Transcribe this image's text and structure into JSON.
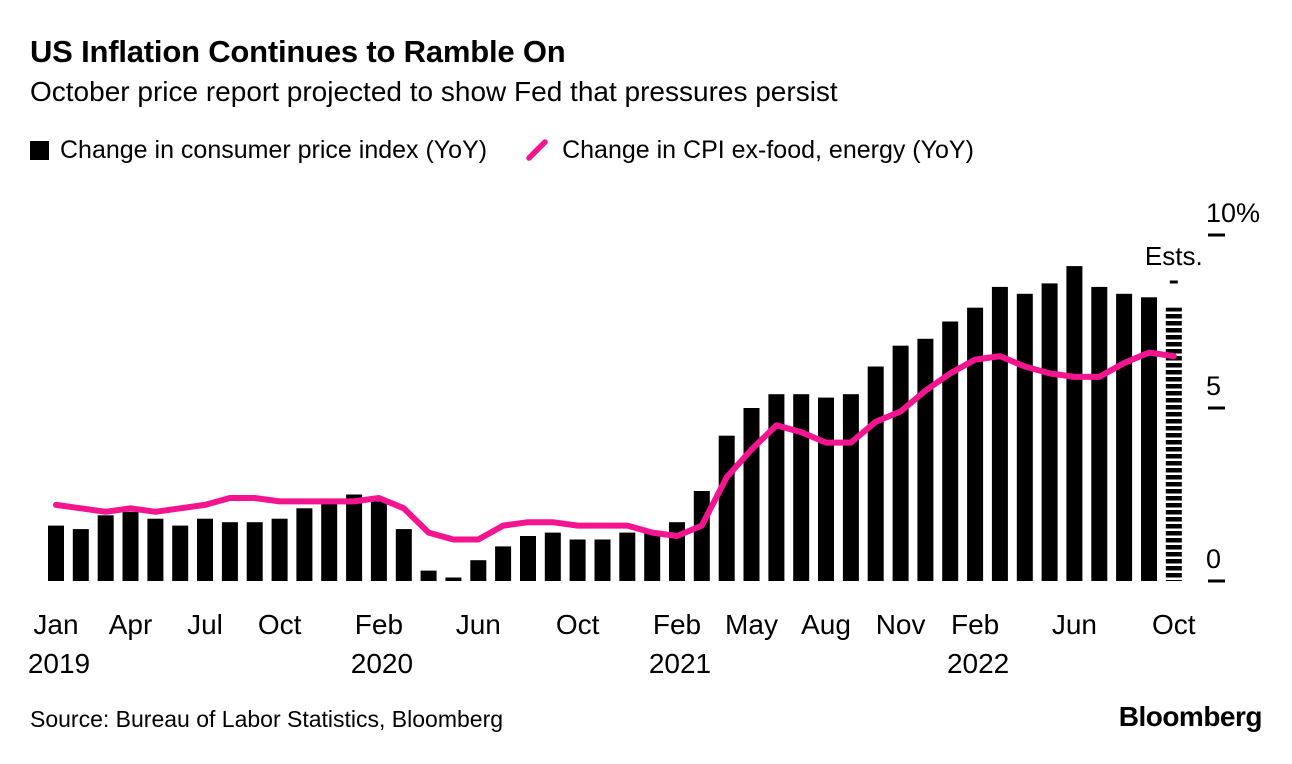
{
  "header": {
    "title": "US Inflation Continues to Ramble On",
    "subtitle": "October price report projected to show Fed that pressures persist"
  },
  "legend": [
    {
      "marker": "black-square",
      "label": "Change in consumer price index (YoY)"
    },
    {
      "marker": "pink-line",
      "label": "Change in CPI ex-food, energy (YoY)"
    }
  ],
  "colors": {
    "bar": "#000000",
    "line": "#f5148f",
    "text": "#000000",
    "background": "#ffffff"
  },
  "source": "Source: Bureau of Labor Statistics, Bloomberg",
  "logo": "Bloomberg",
  "chart_data": {
    "type": "bar",
    "title": "US Inflation Continues to Ramble On",
    "subtitle": "October price report projected to show Fed that pressures persist",
    "xlabel": "",
    "ylabel": "",
    "ylim": [
      0,
      10
    ],
    "grid": false,
    "legend_position": "top",
    "estimate_label": "Ests.",
    "y_ticks": [
      {
        "value": 10,
        "label": "10%"
      },
      {
        "value": 5,
        "label": "5"
      },
      {
        "value": 0,
        "label": "0"
      }
    ],
    "x_ticks": [
      {
        "index": 0,
        "label": "Jan",
        "year": "2019"
      },
      {
        "index": 3,
        "label": "Apr"
      },
      {
        "index": 6,
        "label": "Jul"
      },
      {
        "index": 9,
        "label": "Oct"
      },
      {
        "index": 13,
        "label": "Feb",
        "year": "2020"
      },
      {
        "index": 17,
        "label": "Jun"
      },
      {
        "index": 21,
        "label": "Oct"
      },
      {
        "index": 25,
        "label": "Feb",
        "year": "2021"
      },
      {
        "index": 28,
        "label": "May"
      },
      {
        "index": 31,
        "label": "Aug"
      },
      {
        "index": 34,
        "label": "Nov"
      },
      {
        "index": 37,
        "label": "Feb",
        "year": "2022"
      },
      {
        "index": 41,
        "label": "Jun"
      },
      {
        "index": 45,
        "label": "Oct"
      }
    ],
    "x": [
      "Jan 2019",
      "Feb 2019",
      "Mar 2019",
      "Apr 2019",
      "May 2019",
      "Jun 2019",
      "Jul 2019",
      "Aug 2019",
      "Sep 2019",
      "Oct 2019",
      "Nov 2019",
      "Dec 2019",
      "Jan 2020",
      "Feb 2020",
      "Mar 2020",
      "Apr 2020",
      "May 2020",
      "Jun 2020",
      "Jul 2020",
      "Aug 2020",
      "Sep 2020",
      "Oct 2020",
      "Nov 2020",
      "Dec 2020",
      "Jan 2021",
      "Feb 2021",
      "Mar 2021",
      "Apr 2021",
      "May 2021",
      "Jun 2021",
      "Jul 2021",
      "Aug 2021",
      "Sep 2021",
      "Oct 2021",
      "Nov 2021",
      "Dec 2021",
      "Jan 2022",
      "Feb 2022",
      "Mar 2022",
      "Apr 2022",
      "May 2022",
      "Jun 2022",
      "Jul 2022",
      "Aug 2022",
      "Sep 2022",
      "Oct 2022"
    ],
    "series": [
      {
        "name": "Change in consumer price index (YoY)",
        "type": "bar",
        "estimate_last": true,
        "values": [
          1.6,
          1.5,
          1.9,
          2.0,
          1.8,
          1.6,
          1.8,
          1.7,
          1.7,
          1.8,
          2.1,
          2.3,
          2.5,
          2.3,
          1.5,
          0.3,
          0.1,
          0.6,
          1.0,
          1.3,
          1.4,
          1.2,
          1.2,
          1.4,
          1.4,
          1.7,
          2.6,
          4.2,
          5.0,
          5.4,
          5.4,
          5.3,
          5.4,
          6.2,
          6.8,
          7.0,
          7.5,
          7.9,
          8.5,
          8.3,
          8.6,
          9.1,
          8.5,
          8.3,
          8.2,
          7.9
        ]
      },
      {
        "name": "Change in CPI ex-food, energy (YoY)",
        "type": "line",
        "values": [
          2.2,
          2.1,
          2.0,
          2.1,
          2.0,
          2.1,
          2.2,
          2.4,
          2.4,
          2.3,
          2.3,
          2.3,
          2.3,
          2.4,
          2.1,
          1.4,
          1.2,
          1.2,
          1.6,
          1.7,
          1.7,
          1.6,
          1.6,
          1.6,
          1.4,
          1.3,
          1.6,
          3.0,
          3.8,
          4.5,
          4.3,
          4.0,
          4.0,
          4.6,
          4.9,
          5.5,
          6.0,
          6.4,
          6.5,
          6.2,
          6.0,
          5.9,
          5.9,
          6.3,
          6.6,
          6.5
        ]
      }
    ]
  }
}
